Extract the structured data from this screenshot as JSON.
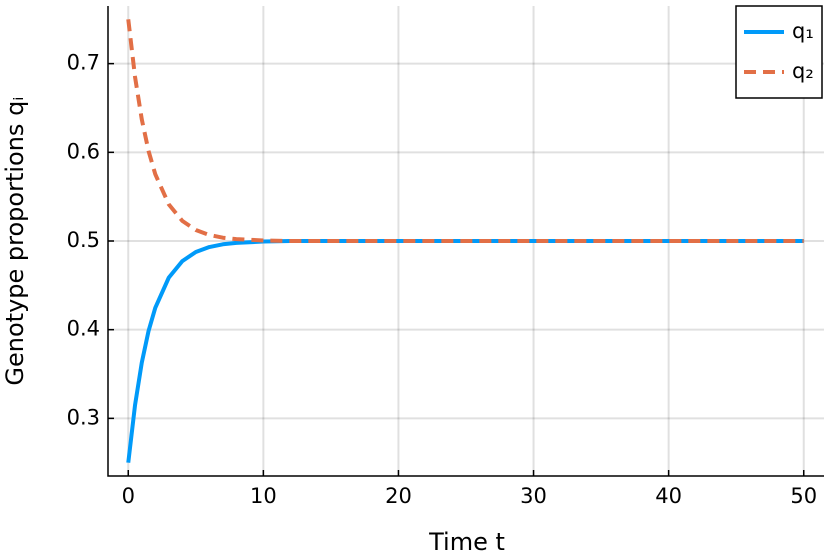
{
  "chart_data": {
    "type": "line",
    "x_label": "Time t",
    "y_label": "Genotype proportions qᵢ",
    "x": [
      0,
      0.5,
      1,
      1.5,
      2,
      3,
      4,
      5,
      6,
      7,
      8,
      10,
      12,
      20,
      30,
      40,
      50
    ],
    "series": [
      {
        "name": "q₁",
        "color": "#009af9",
        "dash": false,
        "values": [
          0.25,
          0.3148,
          0.3628,
          0.3984,
          0.4247,
          0.4587,
          0.4773,
          0.4876,
          0.4932,
          0.4963,
          0.4979,
          0.4994,
          0.5,
          0.5,
          0.5,
          0.5,
          0.5
        ]
      },
      {
        "name": "q₂",
        "color": "#e26f46",
        "dash": true,
        "values": [
          0.75,
          0.6852,
          0.6372,
          0.6016,
          0.5753,
          0.5413,
          0.5227,
          0.5124,
          0.5068,
          0.5037,
          0.5021,
          0.5006,
          0.5,
          0.5,
          0.5,
          0.5,
          0.5
        ]
      }
    ],
    "xlim": [
      -1.5,
      51.5
    ],
    "xticks": [
      0,
      10,
      20,
      30,
      40,
      50
    ],
    "ylim": [
      0.235,
      0.765
    ],
    "yticks": [
      0.3,
      0.4,
      0.5,
      0.6,
      0.7
    ],
    "grid": true,
    "legend": "top-right"
  }
}
